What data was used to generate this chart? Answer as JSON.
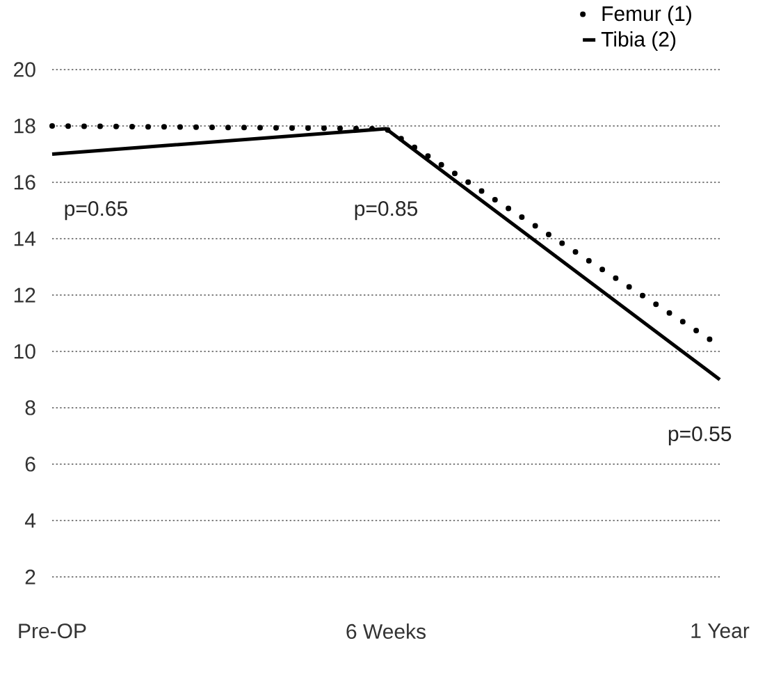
{
  "chart_data": {
    "type": "line",
    "categories": [
      "Pre-OP",
      "6 Weeks",
      "1 Year"
    ],
    "series": [
      {
        "name": "Femur (1)",
        "color": "#000000",
        "line_style": "dotted",
        "values": [
          18,
          17.9,
          10.2
        ]
      },
      {
        "name": "Tibia (2)",
        "color": "#000000",
        "line_style": "solid",
        "values": [
          17,
          17.9,
          9
        ]
      }
    ],
    "ylim": [
      2,
      20
    ],
    "yticks": [
      2,
      4,
      6,
      8,
      10,
      12,
      14,
      16,
      18,
      20
    ],
    "grid": "y",
    "legend": "top right",
    "marker": "none",
    "annotations": [
      "p=0.65",
      "p=0.85",
      "p=0.55"
    ]
  }
}
